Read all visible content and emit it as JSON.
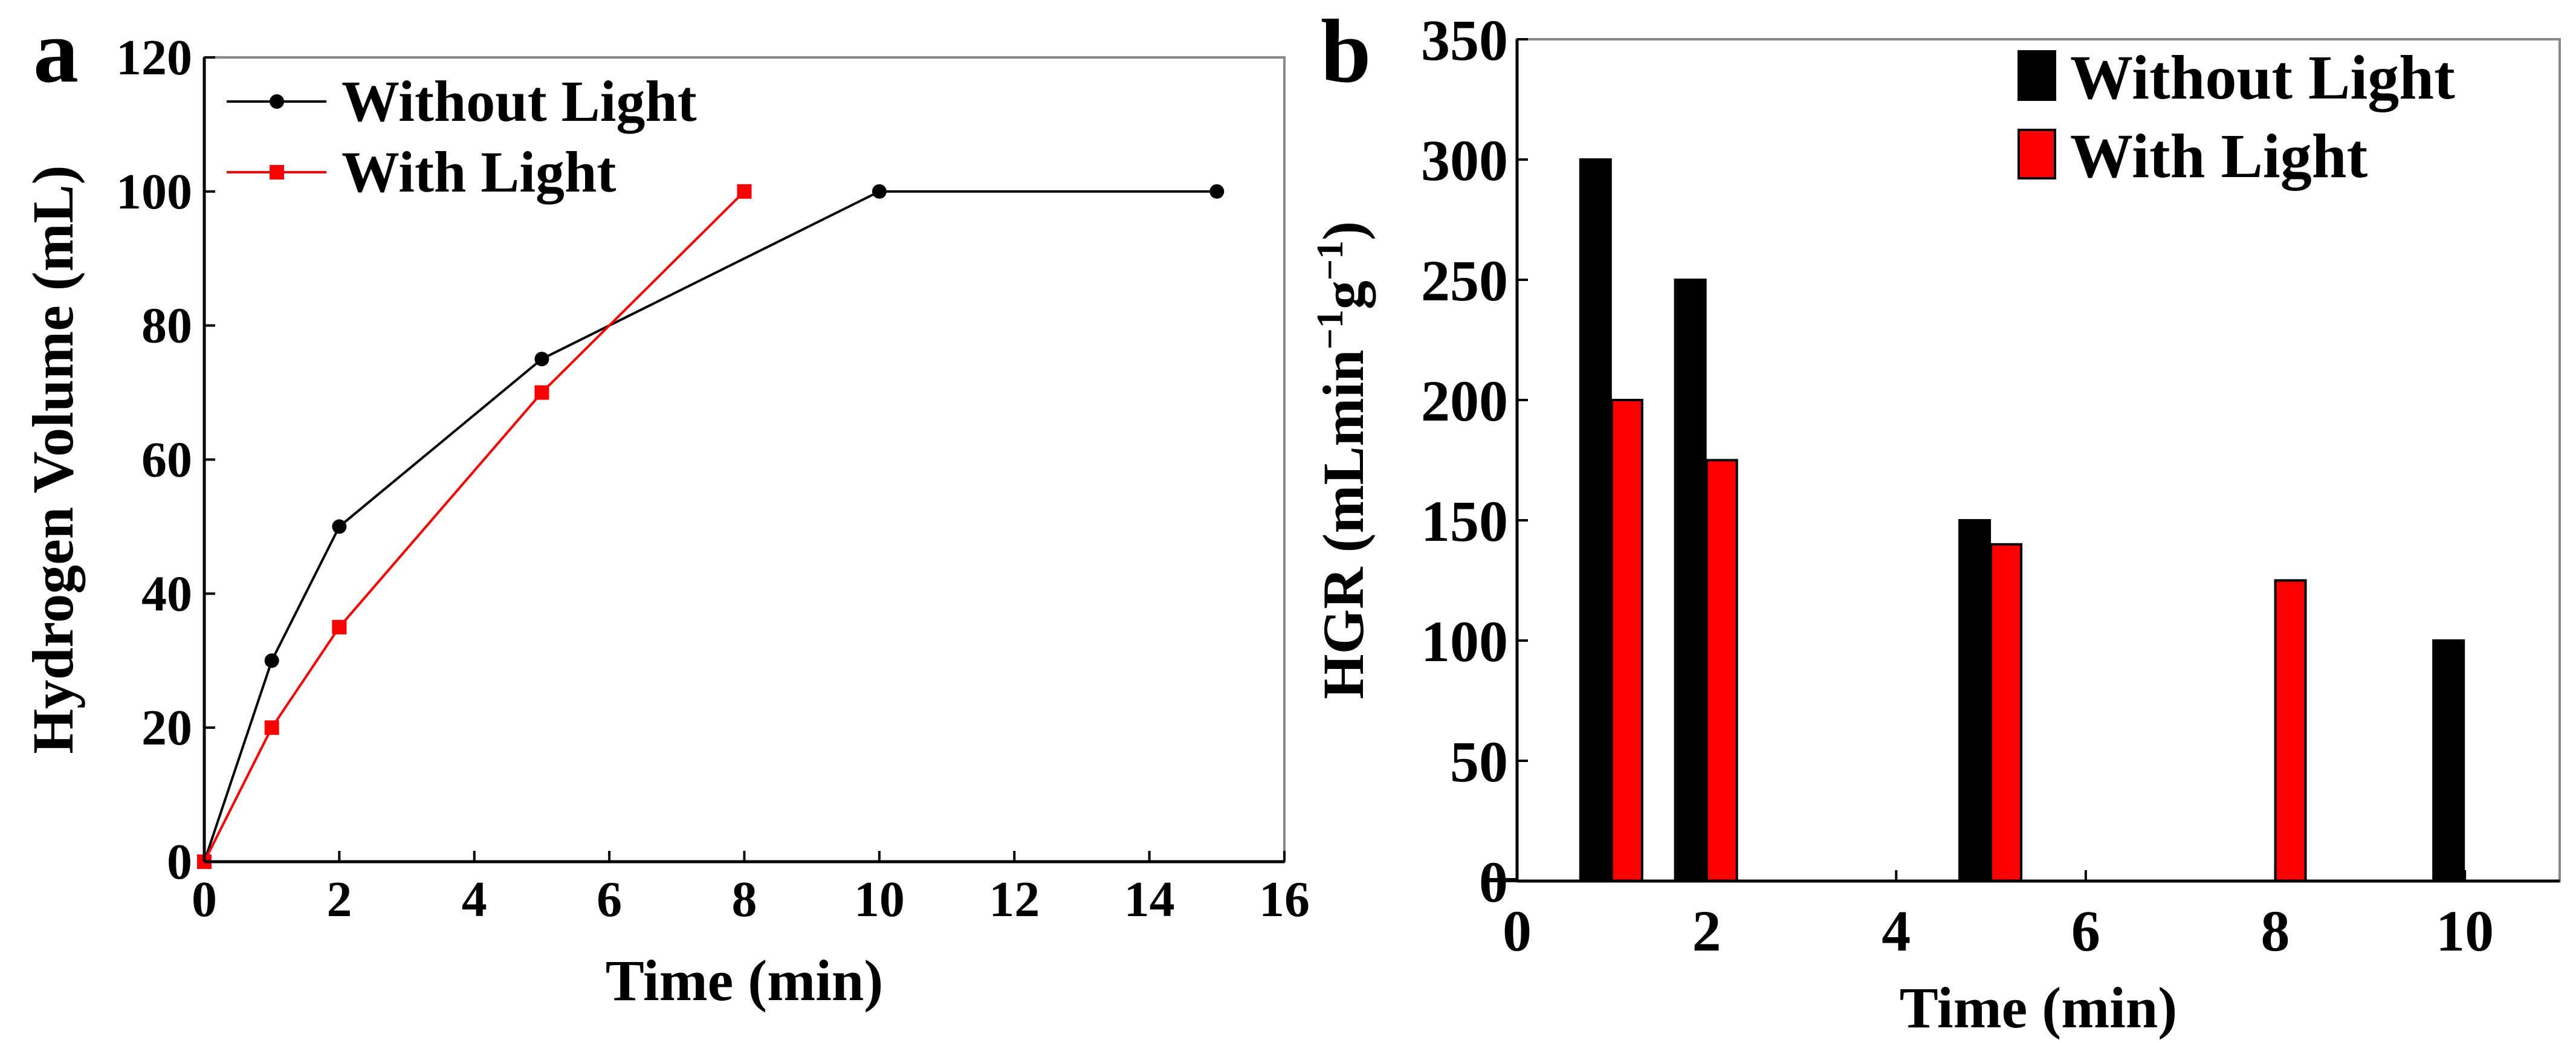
{
  "chart_data": [
    {
      "panel_label": "a",
      "type": "line",
      "xlabel": "Time (min)",
      "ylabel": "Hydrogen Volume (mL)",
      "xlim": [
        0,
        16
      ],
      "ylim": [
        0,
        120
      ],
      "xticks": [
        0,
        2,
        4,
        6,
        8,
        10,
        12,
        14,
        16
      ],
      "yticks": [
        0,
        20,
        40,
        60,
        80,
        100,
        120
      ],
      "legend_position": "top-left",
      "series": [
        {
          "name": "Without Light",
          "color": "#000000",
          "marker": "circle",
          "x": [
            0,
            1,
            2,
            5,
            10,
            15
          ],
          "y": [
            0,
            30,
            50,
            75,
            100,
            100
          ]
        },
        {
          "name": "With Light",
          "color": "#ff0000",
          "marker": "square",
          "x": [
            0,
            1,
            2,
            5,
            8
          ],
          "y": [
            0,
            20,
            35,
            70,
            100
          ]
        }
      ]
    },
    {
      "panel_label": "b",
      "type": "bar",
      "xlabel": "Time (min)",
      "ylabel_main": "HGR (mLmin",
      "ylabel_sup1": "−1",
      "ylabel_mid": "g",
      "ylabel_sup2": "−1",
      "ylabel_end": ")",
      "xlim": [
        0,
        11
      ],
      "ylim": [
        0,
        350
      ],
      "xticks": [
        0,
        2,
        4,
        6,
        8,
        10
      ],
      "yticks": [
        0,
        50,
        100,
        150,
        200,
        250,
        300,
        350
      ],
      "legend_position": "top-right",
      "series": [
        {
          "name": "Without Light",
          "color": "#000000",
          "x": [
            0,
            1,
            2,
            5,
            10
          ],
          "values": [
            0,
            300,
            250,
            150,
            100
          ]
        },
        {
          "name": "With Light",
          "color": "#ff0000",
          "x": [
            1,
            2,
            5,
            8
          ],
          "values": [
            200,
            175,
            140,
            125
          ]
        }
      ]
    }
  ]
}
